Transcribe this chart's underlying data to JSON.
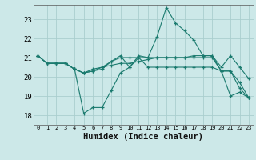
{
  "xlabel": "Humidex (Indice chaleur)",
  "ylabel": "",
  "background_color": "#cce8e8",
  "grid_color": "#aacece",
  "line_color": "#1a7a6e",
  "x_ticks": [
    0,
    1,
    2,
    3,
    4,
    5,
    6,
    7,
    8,
    9,
    10,
    11,
    12,
    13,
    14,
    15,
    16,
    17,
    18,
    19,
    20,
    21,
    22,
    23
  ],
  "y_ticks": [
    18,
    19,
    20,
    21,
    22,
    23
  ],
  "xlim": [
    -0.5,
    23.5
  ],
  "ylim": [
    17.5,
    23.75
  ],
  "series": [
    [
      21.1,
      20.7,
      20.7,
      20.7,
      20.4,
      20.2,
      20.4,
      20.5,
      20.6,
      20.7,
      20.7,
      20.8,
      20.9,
      21.0,
      21.0,
      21.0,
      21.0,
      21.1,
      21.1,
      21.1,
      20.5,
      21.1,
      20.5,
      19.9
    ],
    [
      21.1,
      20.7,
      20.7,
      20.7,
      20.4,
      18.1,
      18.4,
      18.4,
      19.3,
      20.2,
      20.5,
      21.0,
      20.5,
      20.5,
      20.5,
      20.5,
      20.5,
      20.5,
      20.5,
      20.5,
      20.3,
      20.3,
      19.4,
      18.9
    ],
    [
      21.1,
      20.7,
      20.7,
      20.7,
      20.4,
      20.2,
      20.3,
      20.4,
      20.8,
      21.1,
      20.5,
      21.1,
      21.0,
      22.1,
      23.6,
      22.8,
      22.4,
      21.9,
      21.1,
      21.1,
      20.3,
      19.0,
      19.2,
      18.9
    ],
    [
      21.1,
      20.7,
      20.7,
      20.7,
      20.4,
      20.2,
      20.3,
      20.5,
      20.8,
      21.0,
      21.0,
      21.0,
      21.0,
      21.0,
      21.0,
      21.0,
      21.0,
      21.0,
      21.0,
      21.0,
      20.3,
      20.3,
      19.7,
      18.9
    ]
  ]
}
